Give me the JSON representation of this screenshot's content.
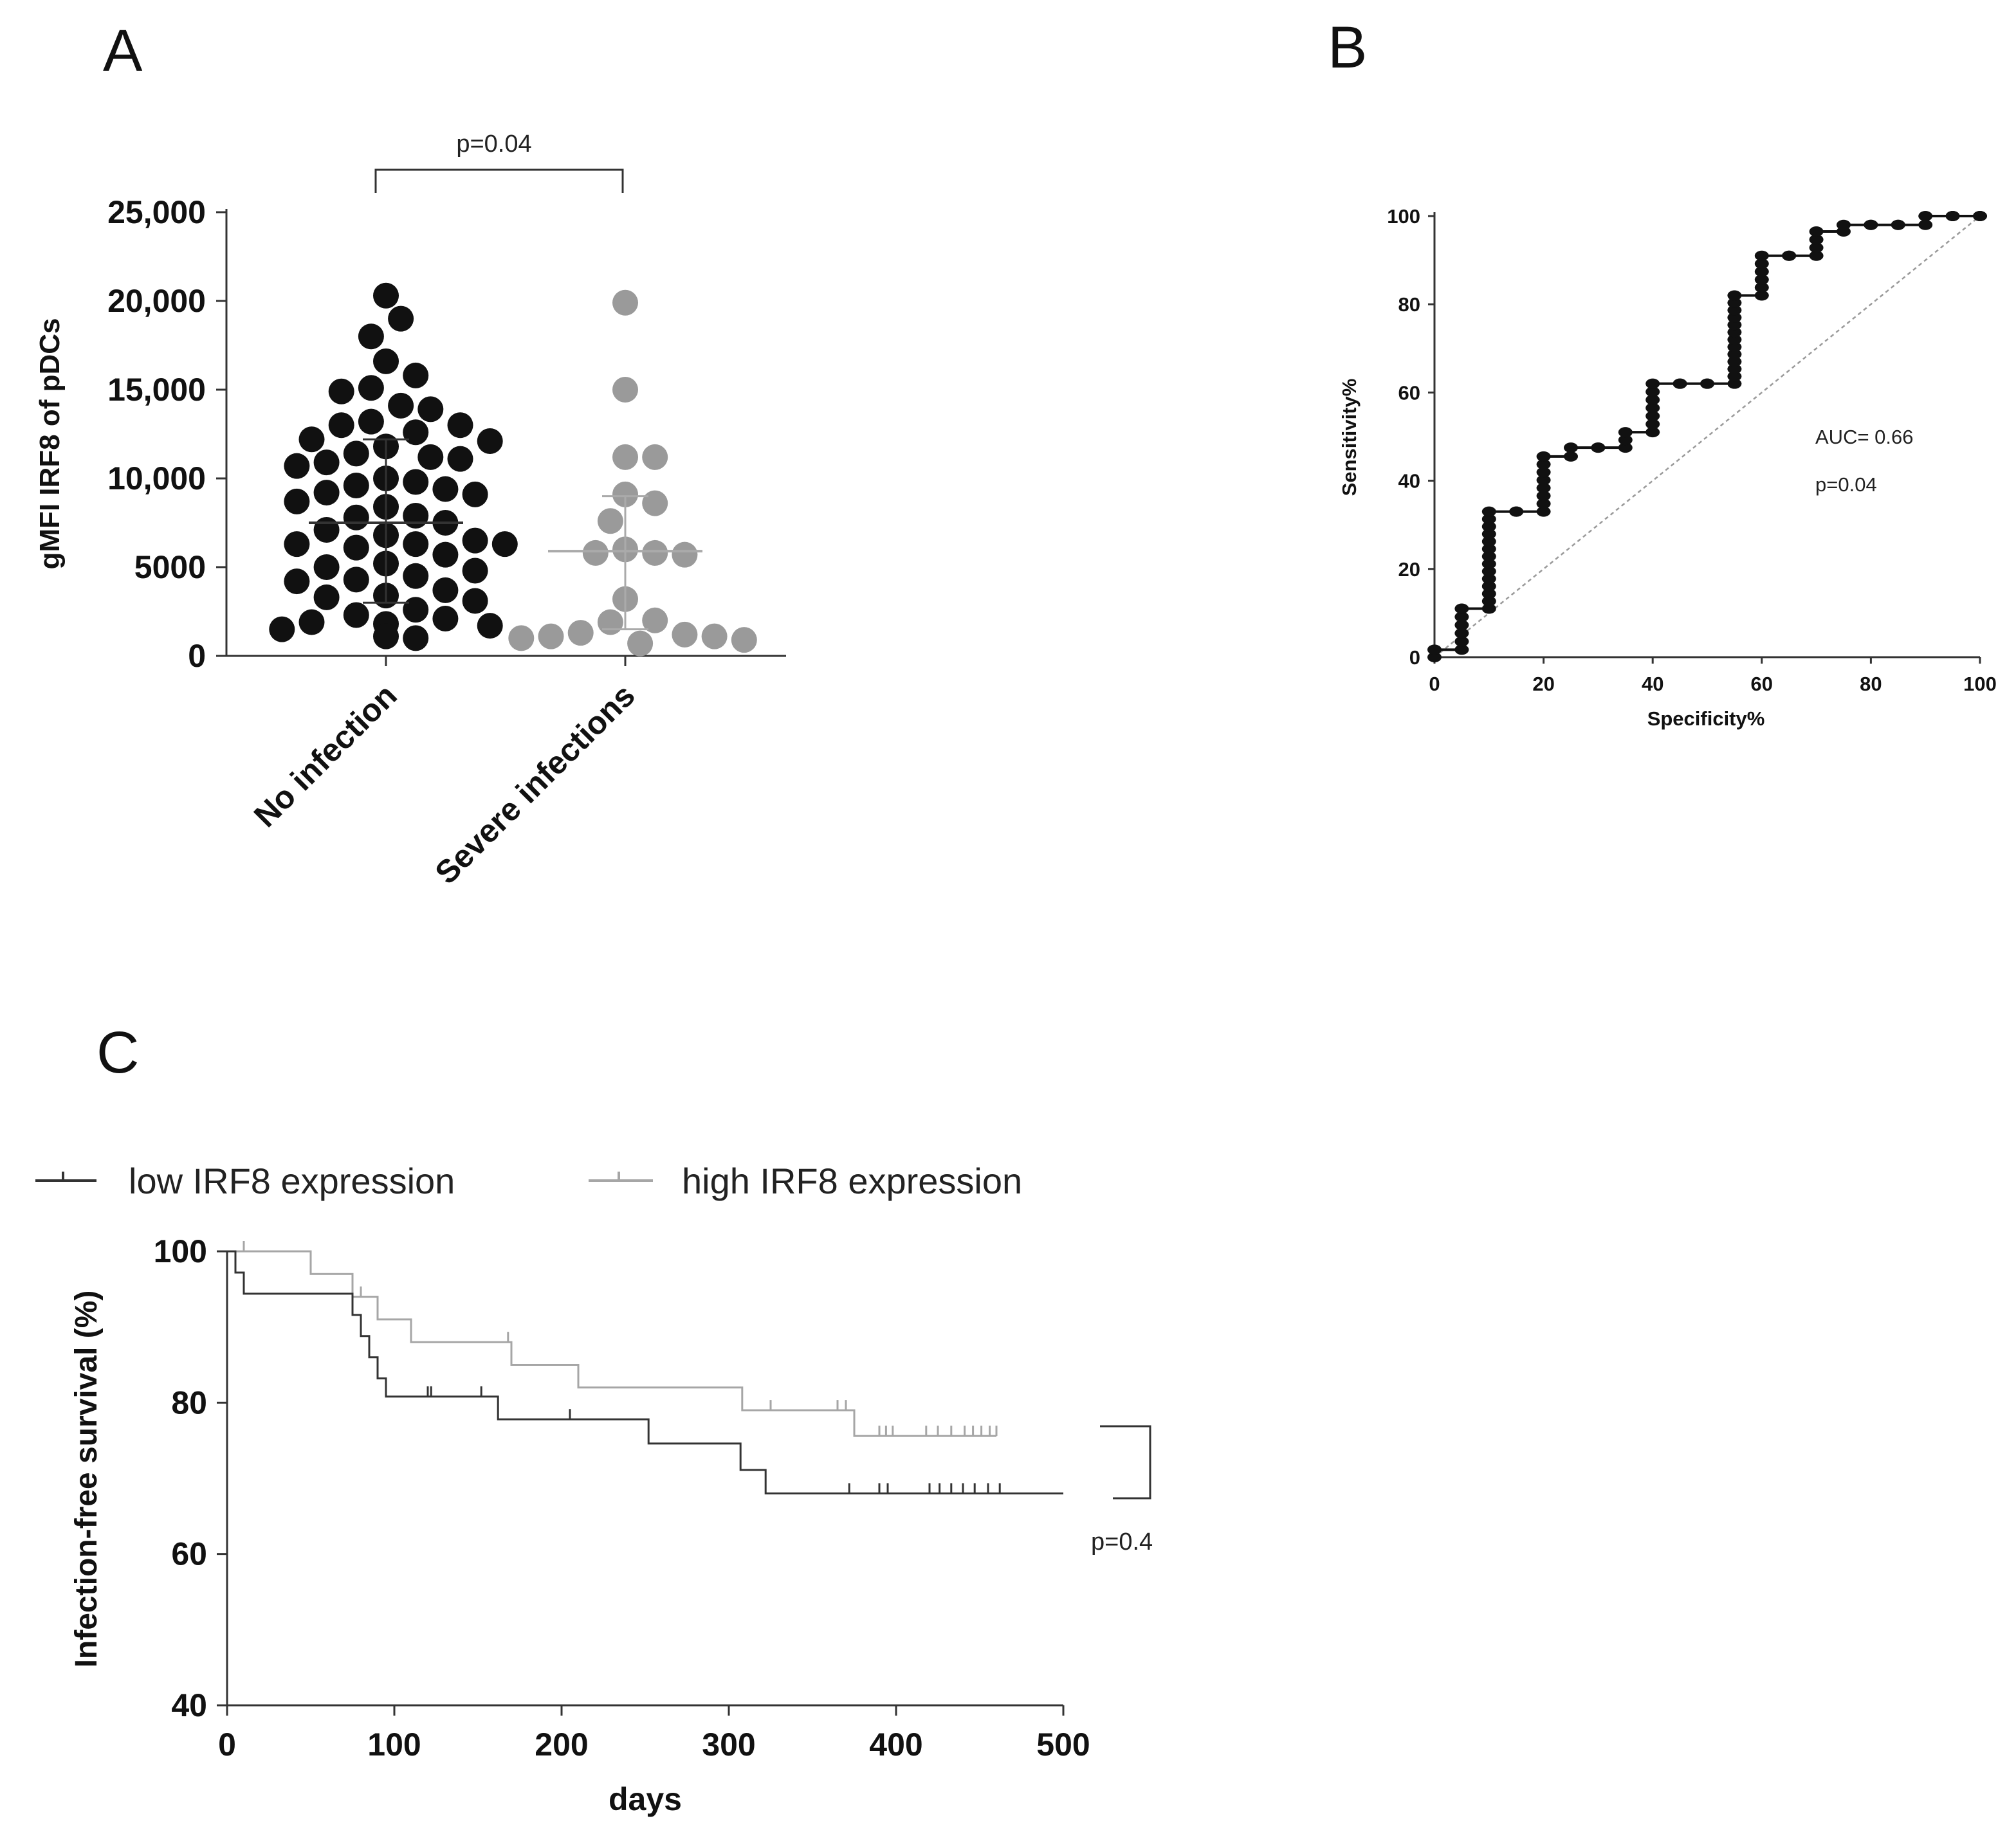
{
  "panel_labels": {
    "a": "A",
    "b": "B",
    "c": "C"
  },
  "colors": {
    "dark": "#111111",
    "grey_points": "#9a9a9a",
    "low_curve": "#333333",
    "high_curve": "#a6a6a6",
    "diagonal": "#9a9a9a"
  },
  "chart_data": [
    {
      "type": "scatter",
      "panel": "A",
      "ylabel": "gMFI IRF8 of pDCs",
      "ylim": [
        0,
        25000
      ],
      "yticks": [
        0,
        5000,
        10000,
        15000,
        20000,
        25000
      ],
      "ytick_labels": [
        "0",
        "5000",
        "10,000",
        "15,000",
        "20,000",
        "25,000"
      ],
      "categories": [
        "No infection",
        "Severe infections"
      ],
      "pvalue": "p=0.04",
      "series": [
        {
          "name": "No infection",
          "color": "#111111",
          "mean": 7500,
          "sd_low": 3000,
          "sd_high": 12200,
          "values": [
            20300,
            19000,
            18000,
            16600,
            15800,
            15100,
            14900,
            14100,
            13900,
            13200,
            13000,
            13000,
            12600,
            12200,
            12100,
            11800,
            11400,
            11200,
            11100,
            10900,
            10700,
            10000,
            9800,
            9600,
            9400,
            9200,
            9100,
            8700,
            8400,
            7900,
            7800,
            7500,
            7100,
            6800,
            6500,
            6300,
            6300,
            6300,
            6100,
            5700,
            5200,
            5000,
            4800,
            4500,
            4300,
            4200,
            3700,
            3400,
            3300,
            3100,
            2600,
            2300,
            2100,
            1900,
            1800,
            1700,
            1500,
            1100,
            1000
          ]
        },
        {
          "name": "Severe infections",
          "color": "#9a9a9a",
          "mean": 5900,
          "sd_low": 1500,
          "sd_high": 9000,
          "values": [
            19900,
            15000,
            11200,
            11200,
            9100,
            8600,
            7600,
            6000,
            5800,
            5800,
            5700,
            3200,
            2000,
            1900,
            1300,
            1200,
            1100,
            1100,
            1000,
            900,
            700
          ]
        }
      ]
    },
    {
      "type": "line",
      "panel": "B",
      "xlabel": "Specificity%",
      "ylabel": "Sensitivity%",
      "xlim": [
        0,
        100
      ],
      "ylim": [
        0,
        100
      ],
      "xticks": [
        0,
        20,
        40,
        60,
        80,
        100
      ],
      "yticks": [
        0,
        20,
        40,
        60,
        80,
        100
      ],
      "annotations": [
        "AUC= 0.66",
        "p=0.04"
      ],
      "reference_line": [
        [
          0,
          0
        ],
        [
          100,
          100
        ]
      ],
      "roc_steps": [
        {
          "x": 0,
          "y_from": 0,
          "y_to": 1.7
        },
        {
          "x": 5,
          "y_from": 1.7,
          "y_to": 11
        },
        {
          "x": 10,
          "y_from": 11,
          "y_to": 33
        },
        {
          "x": 15,
          "y_from": 33,
          "y_to": 33
        },
        {
          "x": 20,
          "y_from": 33,
          "y_to": 45.5
        },
        {
          "x": 25,
          "y_from": 45.5,
          "y_to": 47.5
        },
        {
          "x": 30,
          "y_from": 47.5,
          "y_to": 47.5
        },
        {
          "x": 35,
          "y_from": 47.5,
          "y_to": 51
        },
        {
          "x": 40,
          "y_from": 51,
          "y_to": 62
        },
        {
          "x": 45,
          "y_from": 62,
          "y_to": 62
        },
        {
          "x": 50,
          "y_from": 62,
          "y_to": 62
        },
        {
          "x": 55,
          "y_from": 62,
          "y_to": 82
        },
        {
          "x": 60,
          "y_from": 82,
          "y_to": 91
        },
        {
          "x": 65,
          "y_from": 91,
          "y_to": 91
        },
        {
          "x": 70,
          "y_from": 91,
          "y_to": 96.5
        },
        {
          "x": 75,
          "y_from": 96.5,
          "y_to": 98
        },
        {
          "x": 80,
          "y_from": 98,
          "y_to": 98
        },
        {
          "x": 85,
          "y_from": 98,
          "y_to": 98
        },
        {
          "x": 90,
          "y_from": 98,
          "y_to": 100
        },
        {
          "x": 95,
          "y_from": 100,
          "y_to": 100
        },
        {
          "x": 100,
          "y_from": 100,
          "y_to": 100
        }
      ]
    },
    {
      "type": "line",
      "panel": "C",
      "xlabel": "days",
      "ylabel": "Infection-free survival (%)",
      "xlim": [
        0,
        500
      ],
      "ylim": [
        40,
        100
      ],
      "xticks": [
        0,
        100,
        200,
        300,
        400,
        500
      ],
      "yticks": [
        40,
        60,
        80,
        100
      ],
      "pvalue": "p=0.4",
      "series": [
        {
          "name": "low IRF8 expression",
          "color": "#333333",
          "x": [
            0,
            5,
            10,
            72,
            75,
            80,
            85,
            90,
            95,
            100,
            162,
            252,
            307,
            322,
            500
          ],
          "y": [
            100,
            97.2,
            94.4,
            94.4,
            91.6,
            88.8,
            86,
            83.2,
            80.8,
            80.8,
            77.8,
            74.6,
            71.1,
            68,
            68
          ],
          "censor_x": [
            120,
            122,
            152,
            205,
            372,
            390,
            395,
            420,
            426,
            433,
            440,
            447,
            455,
            462
          ]
        },
        {
          "name": "high IRF8 expression",
          "color": "#a6a6a6",
          "x": [
            0,
            50,
            75,
            90,
            110,
            170,
            210,
            308,
            375,
            460
          ],
          "y": [
            100,
            97,
            94,
            91,
            88,
            85,
            82,
            79,
            75.6,
            75.6
          ],
          "censor_x": [
            10,
            80,
            168,
            325,
            365,
            370,
            375,
            390,
            394,
            398,
            418,
            425,
            433,
            441,
            446,
            451,
            456,
            460
          ]
        }
      ]
    }
  ]
}
